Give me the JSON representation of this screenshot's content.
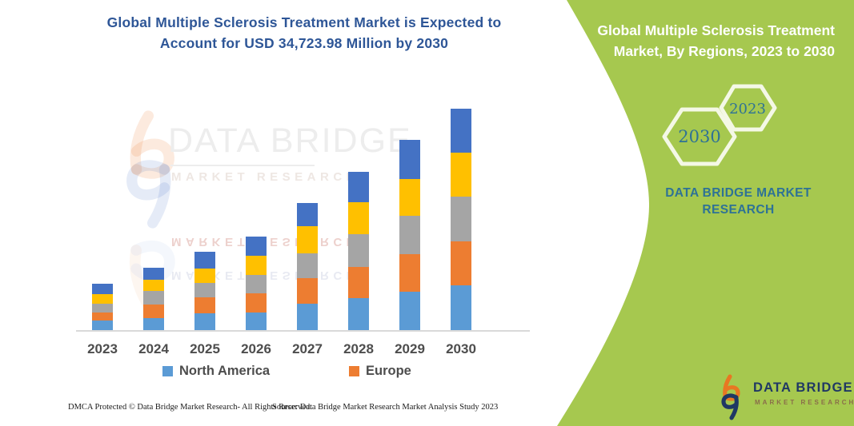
{
  "page": {
    "background": "#ffffff"
  },
  "header": {
    "title_line1": "Global Multiple Sclerosis Treatment Market is Expected to",
    "title_line2": "Account for USD 34,723.98 Million by 2030",
    "title_color": "#2e5697"
  },
  "side_panel": {
    "panel_color": "#a6c84f",
    "title_line1": "Global Multiple Sclerosis Treatment",
    "title_line2": "Market, By Regions, 2023 to 2030",
    "hexagons": [
      {
        "label": "2030"
      },
      {
        "label": "2023"
      }
    ],
    "brand_line1": "DATA BRIDGE MARKET",
    "brand_line2": "RESEARCH",
    "brand_color": "#2e7296"
  },
  "watermark": {
    "brand": "DATA BRIDGE",
    "sub": "MARKET RESEARCH"
  },
  "chart_data": {
    "type": "bar",
    "stacked": true,
    "unit": "USD Million",
    "title": "Global Multiple Sclerosis Treatment Market, By Regions, 2023 to 2030",
    "note_from_title": "2030 total = USD 34,723.98 Million",
    "categories": [
      "2023",
      "2024",
      "2025",
      "2026",
      "2027",
      "2028",
      "2029",
      "2030"
    ],
    "series": [
      {
        "name": "North America",
        "color": "#5B9BD5",
        "in_legend": true,
        "values": [
          1468,
          1933,
          2598,
          2799,
          4142,
          5020,
          6024,
          6990
        ]
      },
      {
        "name": "Europe",
        "color": "#ED7D31",
        "in_legend": true,
        "values": [
          1293,
          2083,
          2510,
          3012,
          4016,
          4932,
          5899,
          6978
        ]
      },
      {
        "name": "Unlabeled region (gray)",
        "color": "#A5A5A5",
        "in_legend": false,
        "values": [
          1418,
          2184,
          2347,
          2849,
          3891,
          5108,
          6024,
          7028
        ]
      },
      {
        "name": "Unlabeled region (yellow)",
        "color": "#FFC000",
        "in_legend": false,
        "values": [
          1506,
          1669,
          2171,
          3050,
          4267,
          5020,
          5773,
          6903
        ]
      },
      {
        "name": "Unlabeled region (dark blue)",
        "color": "#4472C4",
        "in_legend": false,
        "values": [
          1632,
          1920,
          2723,
          3012,
          3640,
          4807,
          6150,
          6824.98
        ]
      }
    ],
    "estimated_totals": [
      7317,
      9789,
      12349,
      14722,
      19956,
      24887,
      29870,
      34723.98
    ],
    "legend_items": [
      {
        "label": "North America",
        "color": "#5B9BD5"
      },
      {
        "label": "Europe",
        "color": "#ED7D31"
      }
    ],
    "legend_position": "bottom",
    "grid": false,
    "y_axis_visible": false
  },
  "footer": {
    "dmca": "DMCA Protected © Data Bridge Market Research-  All Rights Reserved.",
    "source": "Source: Data Bridge Market Research  Market Analysis Study 2023"
  },
  "logo": {
    "brand": "DATA BRIDGE",
    "sub": "MARKET RESEARCH",
    "brand_color": "#203864",
    "mark_orange": "#e87722",
    "mark_navy": "#1f3864"
  }
}
